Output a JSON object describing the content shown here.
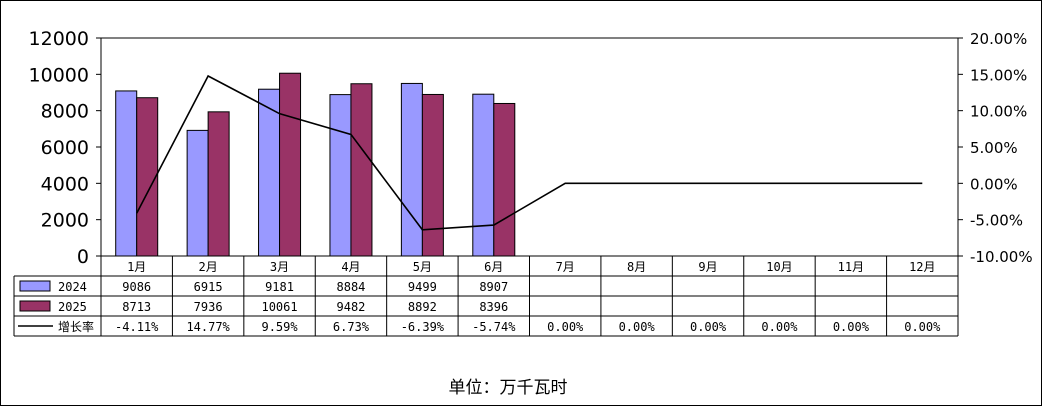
{
  "chart_data": {
    "type": "bar",
    "categories": [
      "1月",
      "2月",
      "3月",
      "4月",
      "5月",
      "6月",
      "7月",
      "8月",
      "9月",
      "10月",
      "11月",
      "12月"
    ],
    "series": [
      {
        "name": "2024",
        "kind": "bar",
        "axis": "left",
        "color": "#9999ff",
        "values": [
          9086,
          6915,
          9181,
          8884,
          9499,
          8907,
          null,
          null,
          null,
          null,
          null,
          null
        ]
      },
      {
        "name": "2025",
        "kind": "bar",
        "axis": "left",
        "color": "#993366",
        "values": [
          8713,
          7936,
          10061,
          9482,
          8892,
          8396,
          null,
          null,
          null,
          null,
          null,
          null
        ]
      },
      {
        "name": "增长率",
        "kind": "line",
        "axis": "right",
        "color": "#000000",
        "values": [
          -4.11,
          14.77,
          9.59,
          6.73,
          -6.39,
          -5.74,
          0,
          0,
          0,
          0,
          0,
          0
        ]
      }
    ],
    "table_rows": [
      {
        "label": "2024",
        "cells": [
          "9086",
          "6915",
          "9181",
          "8884",
          "9499",
          "8907",
          "",
          "",
          "",
          "",
          "",
          ""
        ]
      },
      {
        "label": "2025",
        "cells": [
          "8713",
          "7936",
          "10061",
          "9482",
          "8892",
          "8396",
          "",
          "",
          "",
          "",
          "",
          ""
        ]
      },
      {
        "label": "增长率",
        "cells": [
          "-4.11%",
          "14.77%",
          "9.59%",
          "6.73%",
          "-6.39%",
          "-5.74%",
          "0.00%",
          "0.00%",
          "0.00%",
          "0.00%",
          "0.00%",
          "0.00%"
        ]
      }
    ],
    "y_left": {
      "min": 0,
      "max": 12000,
      "ticks": [
        0,
        2000,
        4000,
        6000,
        8000,
        10000,
        12000
      ]
    },
    "y_right": {
      "min": -10,
      "max": 20,
      "ticks": [
        "-10.00%",
        "-5.00%",
        "0.00%",
        "5.00%",
        "10.00%",
        "15.00%",
        "20.00%"
      ]
    },
    "grid": false,
    "unit_label": "单位：万千瓦时"
  }
}
